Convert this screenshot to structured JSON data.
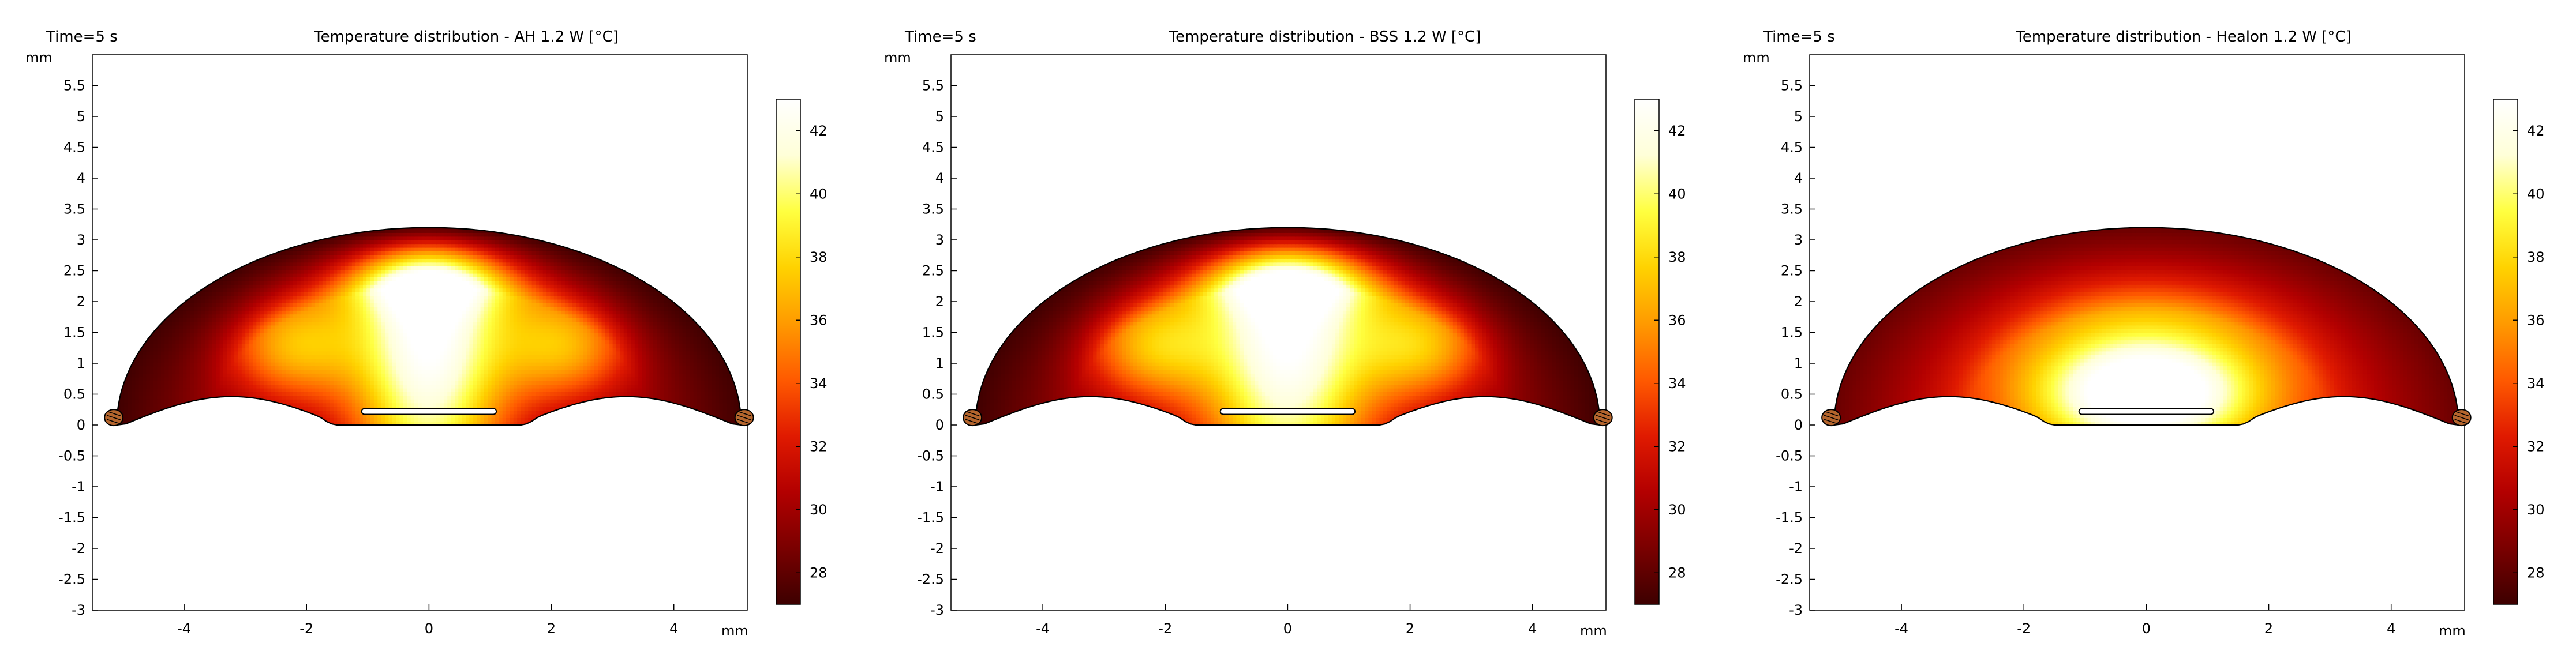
{
  "chart_data": [
    {
      "type": "heatmap",
      "time_label": "Time=5 s",
      "title": "Temperature distribution - AH 1.2 W [°C]",
      "y_unit": "mm",
      "x_unit": "mm",
      "xlim": [
        -5.5,
        5.2
      ],
      "ylim": [
        -3,
        6
      ],
      "x_ticks": [
        -4,
        -2,
        0,
        2,
        4
      ],
      "y_ticks": [
        5.5,
        5,
        4.5,
        4,
        3.5,
        3,
        2.5,
        2,
        1.5,
        1,
        0.5,
        0,
        -0.5,
        -1,
        -1.5,
        -2,
        -2.5,
        -3
      ],
      "colorbar": {
        "min": 27,
        "max": 43,
        "ticks": [
          42,
          40,
          38,
          36,
          34,
          32,
          30,
          28
        ]
      },
      "dome": {
        "half_width": 5.1,
        "apex": 3.2,
        "base_flat_half_width": 1.5,
        "base_arc_height": 0.45
      },
      "heater": {
        "x0": -1.1,
        "x1": 1.1,
        "y": 0.22
      },
      "temperature_field": {
        "profile": "plume",
        "center_temp": 43,
        "edge_temp": 27,
        "plume_width": 0.9,
        "lobe_temp": 36
      }
    },
    {
      "type": "heatmap",
      "time_label": "Time=5 s",
      "title": "Temperature distribution - BSS 1.2 W [°C]",
      "y_unit": "mm",
      "x_unit": "mm",
      "xlim": [
        -5.5,
        5.2
      ],
      "ylim": [
        -3,
        6
      ],
      "x_ticks": [
        -4,
        -2,
        0,
        2,
        4
      ],
      "y_ticks": [
        5.5,
        5,
        4.5,
        4,
        3.5,
        3,
        2.5,
        2,
        1.5,
        1,
        0.5,
        0,
        -0.5,
        -1,
        -1.5,
        -2,
        -2.5,
        -3
      ],
      "colorbar": {
        "min": 27,
        "max": 43,
        "ticks": [
          42,
          40,
          38,
          36,
          34,
          32,
          30,
          28
        ]
      },
      "dome": {
        "half_width": 5.1,
        "apex": 3.2,
        "base_flat_half_width": 1.5,
        "base_arc_height": 0.45
      },
      "heater": {
        "x0": -1.1,
        "x1": 1.1,
        "y": 0.22
      },
      "temperature_field": {
        "profile": "plume",
        "center_temp": 43,
        "edge_temp": 27,
        "plume_width": 1.0,
        "lobe_temp": 35
      }
    },
    {
      "type": "heatmap",
      "time_label": "Time=5 s",
      "title": "Temperature distribution - Healon 1.2 W [°C]",
      "y_unit": "mm",
      "x_unit": "mm",
      "xlim": [
        -5.5,
        5.2
      ],
      "ylim": [
        -3,
        6
      ],
      "x_ticks": [
        -4,
        -2,
        0,
        2,
        4
      ],
      "y_ticks": [
        5.5,
        5,
        4.5,
        4,
        3.5,
        3,
        2.5,
        2,
        1.5,
        1,
        0.5,
        0,
        -0.5,
        -1,
        -1.5,
        -2,
        -2.5,
        -3
      ],
      "colorbar": {
        "min": 27,
        "max": 43,
        "ticks": [
          42,
          40,
          38,
          36,
          34,
          32,
          30,
          28
        ]
      },
      "dome": {
        "half_width": 5.1,
        "apex": 3.2,
        "base_flat_half_width": 1.5,
        "base_arc_height": 0.45
      },
      "heater": {
        "x0": -1.1,
        "x1": 1.1,
        "y": 0.22
      },
      "temperature_field": {
        "profile": "blob",
        "center_temp": 43,
        "edge_temp": 28,
        "blob_center_y": 0.45,
        "blob_radius_x": 1.6,
        "blob_radius_y": 0.8
      }
    }
  ],
  "colors": {
    "colormap": [
      "#3d0000",
      "#7a0000",
      "#b30000",
      "#e01a00",
      "#ff5a00",
      "#ff9a00",
      "#ffd200",
      "#ffff40",
      "#ffffd8",
      "#ffffff"
    ],
    "outline": "#000000",
    "probe": "#b5652d",
    "grid": "#000000"
  }
}
